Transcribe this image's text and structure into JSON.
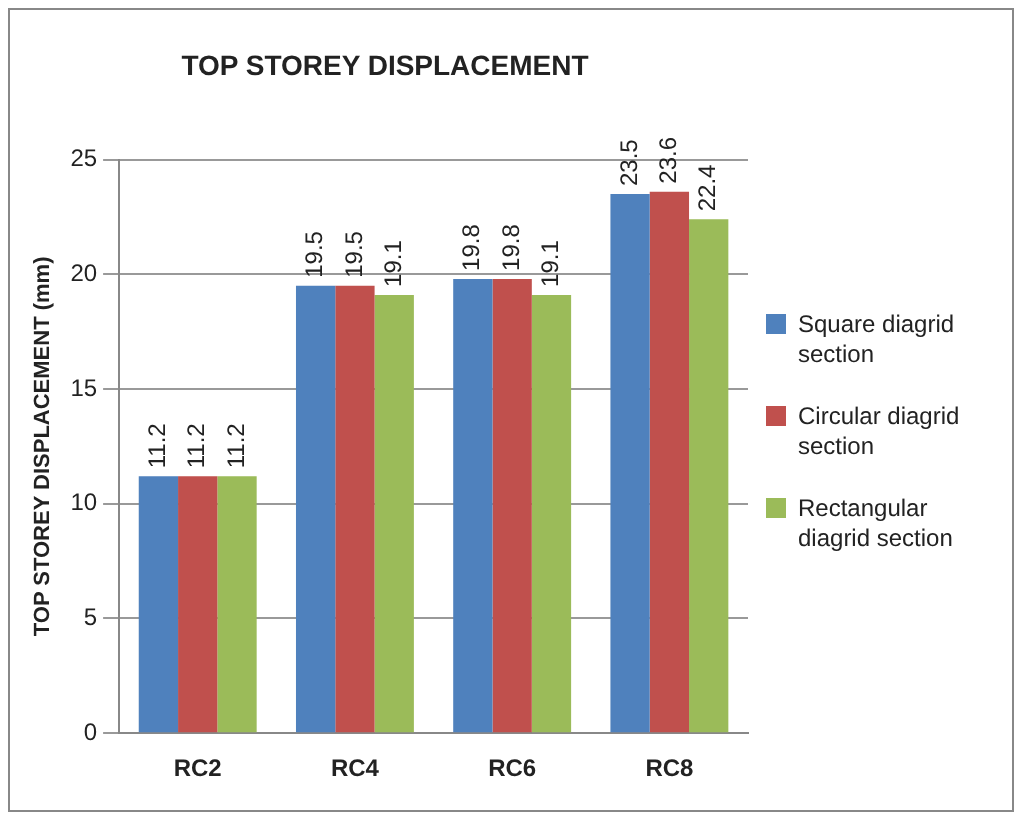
{
  "chart_data": {
    "type": "bar",
    "title": "TOP STOREY DISPLACEMENT",
    "ylabel": "TOP STOREY DISPLACEMENT (mm)",
    "categories": [
      "RC2",
      "RC4",
      "RC6",
      "RC8"
    ],
    "series": [
      {
        "name": "Square diagrid section",
        "color": "#4f81bd",
        "values": [
          11.2,
          19.5,
          19.8,
          23.5
        ]
      },
      {
        "name": "Circular diagrid section",
        "color": "#c0504d",
        "values": [
          11.2,
          19.5,
          19.8,
          23.6
        ]
      },
      {
        "name": "Rectangular diagrid section",
        "color": "#9bbb59",
        "values": [
          11.2,
          19.1,
          19.1,
          22.4
        ]
      }
    ],
    "ylim": [
      0,
      25
    ],
    "yticks": [
      0,
      5,
      10,
      15,
      20,
      25
    ],
    "grid": "y",
    "legend": "right",
    "data_labels": true
  }
}
